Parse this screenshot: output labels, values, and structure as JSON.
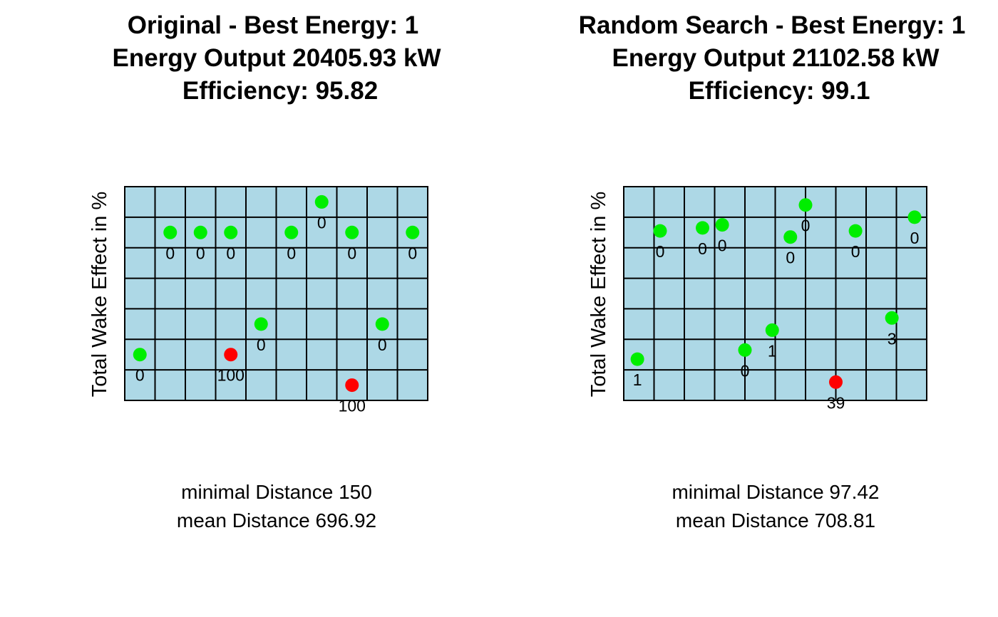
{
  "colors": {
    "background": "#add8e6",
    "grid": "#000000",
    "low_wake": "#00ee00",
    "high_wake": "#ff0000"
  },
  "chart_data": [
    {
      "type": "scatter",
      "title_lines": [
        "Original - Best Energy: 1",
        "Energy Output 20405.93 kW",
        "Efficiency: 95.82"
      ],
      "ylabel": "Total Wake Effect in %",
      "stats": [
        "minimal Distance 150",
        "mean Distance 696.92"
      ],
      "grid": true,
      "xlim": [
        0,
        10
      ],
      "ylim": [
        0,
        7
      ],
      "points": [
        {
          "x": 0.5,
          "y": 1.5,
          "wake": 0,
          "label": "0"
        },
        {
          "x": 1.5,
          "y": 5.5,
          "wake": 0,
          "label": "0"
        },
        {
          "x": 2.5,
          "y": 5.5,
          "wake": 0,
          "label": "0"
        },
        {
          "x": 3.5,
          "y": 5.5,
          "wake": 0,
          "label": "0"
        },
        {
          "x": 5.5,
          "y": 5.5,
          "wake": 0,
          "label": "0"
        },
        {
          "x": 6.5,
          "y": 6.5,
          "wake": 0,
          "label": "0"
        },
        {
          "x": 7.5,
          "y": 5.5,
          "wake": 0,
          "label": "0"
        },
        {
          "x": 9.5,
          "y": 5.5,
          "wake": 0,
          "label": "0"
        },
        {
          "x": 4.5,
          "y": 2.5,
          "wake": 0,
          "label": "0"
        },
        {
          "x": 8.5,
          "y": 2.5,
          "wake": 0,
          "label": "0"
        },
        {
          "x": 3.5,
          "y": 1.5,
          "wake": 100,
          "label": "100"
        },
        {
          "x": 7.5,
          "y": 0.5,
          "wake": 100,
          "label": "100"
        }
      ]
    },
    {
      "type": "scatter",
      "title_lines": [
        "Random Search - Best Energy: 1",
        "Energy Output 21102.58 kW",
        "Efficiency: 99.1"
      ],
      "ylabel": "Total Wake Effect in %",
      "stats": [
        "minimal Distance 97.42",
        "mean Distance 708.81"
      ],
      "grid": true,
      "xlim": [
        0,
        10
      ],
      "ylim": [
        0,
        7
      ],
      "points": [
        {
          "x": 0.45,
          "y": 1.35,
          "wake": 1,
          "label": "1"
        },
        {
          "x": 1.2,
          "y": 5.55,
          "wake": 0,
          "label": "0"
        },
        {
          "x": 2.6,
          "y": 5.65,
          "wake": 0,
          "label": "0"
        },
        {
          "x": 3.25,
          "y": 5.75,
          "wake": 0,
          "label": "0"
        },
        {
          "x": 4.0,
          "y": 1.65,
          "wake": 0,
          "label": "0"
        },
        {
          "x": 4.9,
          "y": 2.3,
          "wake": 1,
          "label": "1"
        },
        {
          "x": 5.5,
          "y": 5.35,
          "wake": 0,
          "label": "0"
        },
        {
          "x": 6.0,
          "y": 6.4,
          "wake": 0,
          "label": "0"
        },
        {
          "x": 7.0,
          "y": 0.6,
          "wake": 39,
          "label": "39"
        },
        {
          "x": 7.65,
          "y": 5.55,
          "wake": 0,
          "label": "0"
        },
        {
          "x": 8.85,
          "y": 2.7,
          "wake": 3,
          "label": "3"
        },
        {
          "x": 9.6,
          "y": 6.0,
          "wake": 0,
          "label": "0"
        }
      ]
    }
  ]
}
